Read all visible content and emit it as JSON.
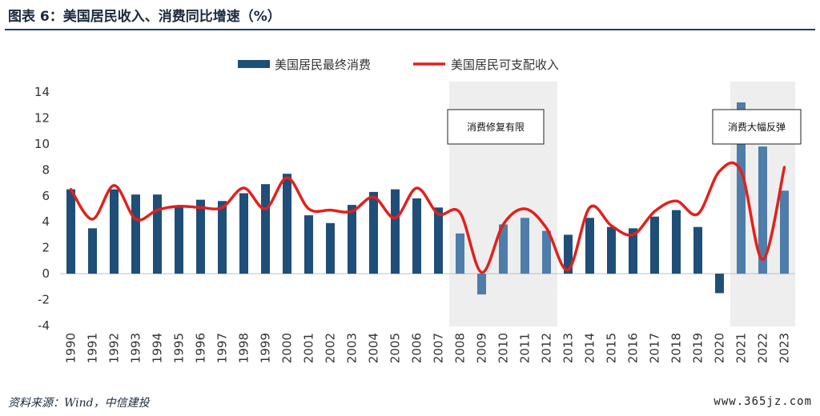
{
  "figure_title": "图表 6：美国居民收入、消费同比增速（%）",
  "source": "资料来源：Wind，中信建投",
  "watermark": "www.365jz.com",
  "chart_data": {
    "type": "bar+line",
    "categories": [
      "1990",
      "1991",
      "1992",
      "1993",
      "1994",
      "1995",
      "1996",
      "1997",
      "1998",
      "1999",
      "2000",
      "2001",
      "2002",
      "2003",
      "2004",
      "2005",
      "2006",
      "2007",
      "2008",
      "2009",
      "2010",
      "2011",
      "2012",
      "2013",
      "2014",
      "2015",
      "2016",
      "2017",
      "2018",
      "2019",
      "2020",
      "2021",
      "2022",
      "2023"
    ],
    "series": [
      {
        "name": "美国居民最终消费",
        "type": "bar",
        "color": "#1f4e79",
        "values": [
          6.5,
          3.5,
          6.5,
          6.1,
          6.1,
          5.2,
          5.7,
          5.6,
          6.2,
          6.9,
          7.7,
          4.5,
          3.9,
          5.3,
          6.3,
          6.5,
          5.8,
          5.1,
          3.1,
          -1.6,
          3.8,
          4.3,
          3.3,
          3.0,
          4.3,
          3.6,
          3.5,
          4.4,
          4.9,
          3.6,
          -1.5,
          13.2,
          9.8,
          6.4
        ]
      },
      {
        "name": "美国居民可支配收入",
        "type": "line",
        "color": "#e3201b",
        "values": [
          6.5,
          4.2,
          6.8,
          4.2,
          4.9,
          5.2,
          5.1,
          5.1,
          6.6,
          5.0,
          7.4,
          5.0,
          4.9,
          4.8,
          5.9,
          4.3,
          6.6,
          4.6,
          4.7,
          0.1,
          3.8,
          5.0,
          3.5,
          0.3,
          5.1,
          3.7,
          3.0,
          4.8,
          5.6,
          4.6,
          7.9,
          7.9,
          1.1,
          8.2
        ]
      }
    ],
    "ylim": [
      -4,
      14
    ],
    "yticks": [
      -4,
      -2,
      0,
      2,
      4,
      6,
      8,
      10,
      12,
      14
    ],
    "legend_position": "top-center",
    "grid": false,
    "bar_color_shaded": "#4e7da9",
    "shaded_regions": [
      {
        "from": "2008",
        "to": "2012",
        "label": "消费修复有限"
      },
      {
        "from": "2021",
        "to": "2023",
        "label": "消费大幅反弹"
      }
    ]
  }
}
